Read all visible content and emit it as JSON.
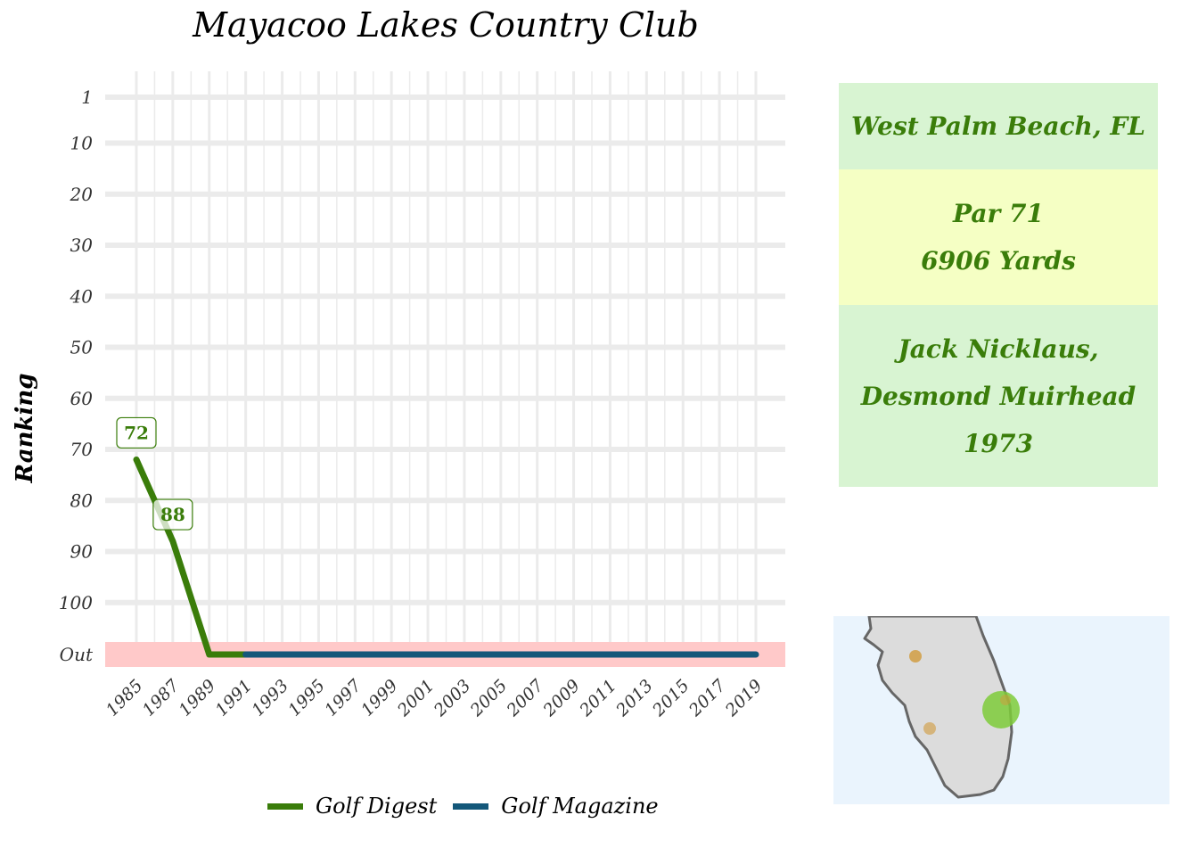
{
  "chart_data": {
    "type": "line",
    "title": "Mayacoo Lakes Country Club",
    "ylabel": "Ranking",
    "xlabel": "",
    "y_tick_labels": [
      "1",
      "10",
      "20",
      "30",
      "40",
      "50",
      "60",
      "70",
      "80",
      "90",
      "100",
      "Out"
    ],
    "y_tick_values": [
      1,
      10,
      20,
      30,
      40,
      50,
      60,
      70,
      80,
      90,
      100,
      110
    ],
    "ylim": [
      1,
      110
    ],
    "y_reversed": true,
    "x_tick_labels": [
      "1985",
      "1987",
      "1989",
      "1991",
      "1993",
      "1995",
      "1997",
      "1999",
      "2001",
      "2003",
      "2005",
      "2007",
      "2009",
      "2011",
      "2013",
      "2015",
      "2017",
      "2019"
    ],
    "xlim": [
      1985,
      2019
    ],
    "out_band_value": 110,
    "series": [
      {
        "name": "Golf Digest",
        "color": "#3a7d0a",
        "points": [
          [
            1985,
            72
          ],
          [
            1987,
            88
          ],
          [
            1989,
            110
          ],
          [
            1991,
            110
          ]
        ]
      },
      {
        "name": "Golf Magazine",
        "color": "#14587a",
        "points": [
          [
            1991,
            110
          ],
          [
            2019,
            110
          ]
        ]
      }
    ],
    "data_labels": [
      {
        "x": 1985,
        "y": 72,
        "text": "72"
      },
      {
        "x": 1987,
        "y": 88,
        "text": "88"
      }
    ],
    "grid": true,
    "legend_position": "bottom"
  },
  "info": {
    "location": "West Palm Beach, FL",
    "par": "Par 71",
    "yards": "6906 Yards",
    "architect_line1": "Jack Nicklaus,",
    "architect_line2": "Desmond Muirhead",
    "year": "1973"
  },
  "colors": {
    "digest": "#3a7d0a",
    "magazine": "#14587a",
    "out_band": "#ffc9c9",
    "grid": "#ebebeb",
    "map_land": "#dcdcdc",
    "map_water": "#eaf4fd",
    "marker_other": "#d19a3a",
    "marker_current": "#7ecb3a"
  }
}
